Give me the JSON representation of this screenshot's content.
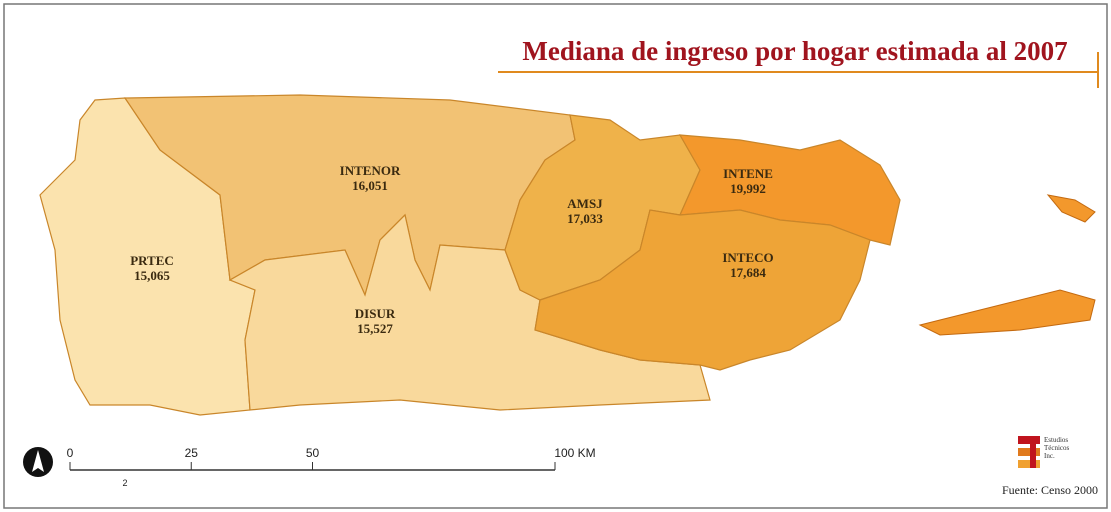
{
  "title": "Mediana de ingreso por hogar estimada al 2007",
  "regions": [
    {
      "name": "PRTEC",
      "value": 15065,
      "label": "15,065",
      "color": "#fbe3ae"
    },
    {
      "name": "INTENOR",
      "value": 16051,
      "label": "16,051",
      "color": "#f2c274"
    },
    {
      "name": "DISUR",
      "value": 15527,
      "label": "15,527",
      "color": "#f9d99c"
    },
    {
      "name": "AMSJ",
      "value": 17033,
      "label": "17,033",
      "color": "#efb24a"
    },
    {
      "name": "INTENE",
      "value": 19992,
      "label": "19,992",
      "color": "#f3982c"
    },
    {
      "name": "INTECO",
      "value": 17684,
      "label": "17,684",
      "color": "#eea437"
    }
  ],
  "scale": {
    "ticks": [
      0,
      25,
      50,
      {
        "value": 100,
        "label": "100 KM"
      }
    ],
    "sublabel": "2"
  },
  "logo": "Estudios Técnicos Inc.",
  "source": "Fuente: Censo 2000"
}
